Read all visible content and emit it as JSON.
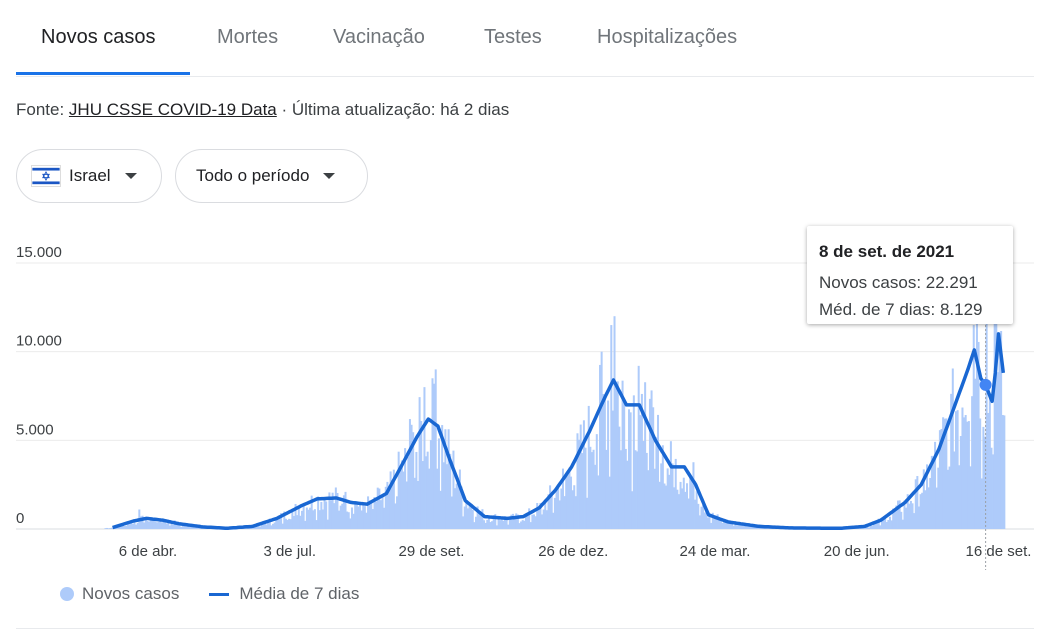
{
  "tabs": [
    {
      "label": "Novos casos",
      "active": true
    },
    {
      "label": "Mortes",
      "active": false
    },
    {
      "label": "Vacinação",
      "active": false
    },
    {
      "label": "Testes",
      "active": false
    },
    {
      "label": "Hospitalizações",
      "active": false
    }
  ],
  "source": {
    "prefix": "Fonte: ",
    "link_text": "JHU CSSE COVID-19 Data",
    "separator": " · ",
    "updated_label": "Última atualização: há 2 dias"
  },
  "filters": {
    "country": "Israel",
    "country_flag_icon": "israel-flag-icon",
    "period": "Todo o período"
  },
  "tooltip": {
    "date": "8 de set. de 2021",
    "new_cases_line": "Novos casos: 22.291",
    "avg_line": "Méd. de 7 dias: 8.129"
  },
  "legend": {
    "bars_label": "Novos casos",
    "line_label": "Média de 7 dias"
  },
  "colors": {
    "bars": "#aecbfa",
    "line": "#1967d2",
    "accent": "#1a73e8"
  },
  "chart_data": {
    "type": "bar",
    "ylim": [
      0,
      15000
    ],
    "y_ticks": [
      {
        "value": 0,
        "label": "0"
      },
      {
        "value": 5000,
        "label": "5.000"
      },
      {
        "value": 10000,
        "label": "10.000"
      },
      {
        "value": 15000,
        "label": "15.000"
      }
    ],
    "x_ticks": [
      {
        "date": "2020-04-06",
        "label": "6 de abr."
      },
      {
        "date": "2020-07-03",
        "label": "3 de jul."
      },
      {
        "date": "2020-09-29",
        "label": "29 de set."
      },
      {
        "date": "2020-12-26",
        "label": "26 de dez."
      },
      {
        "date": "2021-03-24",
        "label": "24 de mar."
      },
      {
        "date": "2021-06-20",
        "label": "20 de jun."
      },
      {
        "date": "2021-09-16",
        "label": "16 de set."
      }
    ],
    "x_range": [
      "2020-03-01",
      "2021-09-25"
    ],
    "highlight": {
      "date": "2021-09-08",
      "new_cases": 22291,
      "avg_7d": 8129
    },
    "series": [
      {
        "name": "Média de 7 dias",
        "type": "line",
        "points": [
          [
            "2020-03-01",
            0
          ],
          [
            "2020-03-15",
            80
          ],
          [
            "2020-03-28",
            450
          ],
          [
            "2020-04-05",
            600
          ],
          [
            "2020-04-15",
            500
          ],
          [
            "2020-04-25",
            300
          ],
          [
            "2020-05-10",
            120
          ],
          [
            "2020-05-25",
            40
          ],
          [
            "2020-06-10",
            150
          ],
          [
            "2020-06-25",
            600
          ],
          [
            "2020-07-10",
            1300
          ],
          [
            "2020-07-20",
            1700
          ],
          [
            "2020-08-01",
            1750
          ],
          [
            "2020-08-10",
            1500
          ],
          [
            "2020-08-20",
            1400
          ],
          [
            "2020-09-01",
            2000
          ],
          [
            "2020-09-10",
            3500
          ],
          [
            "2020-09-20",
            5200
          ],
          [
            "2020-09-27",
            6200
          ],
          [
            "2020-10-03",
            5800
          ],
          [
            "2020-10-10",
            4000
          ],
          [
            "2020-10-20",
            1600
          ],
          [
            "2020-11-01",
            700
          ],
          [
            "2020-11-15",
            600
          ],
          [
            "2020-11-25",
            700
          ],
          [
            "2020-12-05",
            1200
          ],
          [
            "2020-12-15",
            2200
          ],
          [
            "2020-12-25",
            3500
          ],
          [
            "2021-01-05",
            5500
          ],
          [
            "2021-01-15",
            7500
          ],
          [
            "2021-01-20",
            8400
          ],
          [
            "2021-01-28",
            7000
          ],
          [
            "2021-02-05",
            7000
          ],
          [
            "2021-02-15",
            5000
          ],
          [
            "2021-02-25",
            3500
          ],
          [
            "2021-03-05",
            3500
          ],
          [
            "2021-03-12",
            2500
          ],
          [
            "2021-03-20",
            800
          ],
          [
            "2021-04-01",
            400
          ],
          [
            "2021-04-20",
            150
          ],
          [
            "2021-05-10",
            60
          ],
          [
            "2021-06-10",
            40
          ],
          [
            "2021-06-25",
            150
          ],
          [
            "2021-07-05",
            500
          ],
          [
            "2021-07-20",
            1500
          ],
          [
            "2021-07-30",
            2500
          ],
          [
            "2021-08-10",
            4500
          ],
          [
            "2021-08-20",
            7000
          ],
          [
            "2021-08-28",
            9000
          ],
          [
            "2021-09-01",
            10100
          ],
          [
            "2021-09-05",
            8500
          ],
          [
            "2021-09-08",
            8129
          ],
          [
            "2021-09-12",
            7200
          ],
          [
            "2021-09-14",
            8800
          ],
          [
            "2021-09-16",
            11000
          ],
          [
            "2021-09-19",
            8800
          ]
        ]
      },
      {
        "name": "Novos casos",
        "type": "bar",
        "spikes": [
          [
            "2020-03-31",
            1100
          ],
          [
            "2020-08-05",
            1900
          ],
          [
            "2020-09-15",
            6200
          ],
          [
            "2020-09-24",
            8000
          ],
          [
            "2020-09-29",
            8500
          ],
          [
            "2020-10-01",
            9000
          ],
          [
            "2021-01-12",
            10000
          ],
          [
            "2021-01-18",
            11500
          ],
          [
            "2021-01-20",
            12000
          ],
          [
            "2021-02-04",
            9200
          ],
          [
            "2021-08-31",
            11500
          ],
          [
            "2021-09-02",
            13000
          ],
          [
            "2021-09-08",
            22291
          ],
          [
            "2021-09-13",
            14000
          ]
        ]
      }
    ]
  }
}
